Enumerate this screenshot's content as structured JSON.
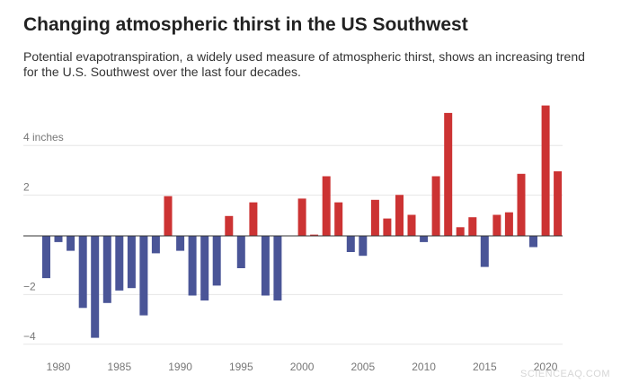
{
  "header": {
    "title": "Changing atmospheric thirst in the US Southwest",
    "subtitle": "Potential evapotranspiration, a widely used measure of atmospheric thirst, shows an increasing trend for the U.S. Southwest over the last four decades."
  },
  "watermark": "SCIENCEAQ.COM",
  "colors": {
    "positive": "#cc3333",
    "negative": "#4a5597",
    "grid": "#e6e6e6",
    "zero": "#333333"
  },
  "chart_data": {
    "type": "bar",
    "title": "Changing atmospheric thirst in the US Southwest",
    "xlabel": "",
    "ylabel": "",
    "ylim": [
      -4.2,
      5.4
    ],
    "grid": "horizontal",
    "legend": "none",
    "y_ticks": [
      {
        "value": 4,
        "label": "4 inches"
      },
      {
        "value": 2,
        "label": "2"
      },
      {
        "value": -2,
        "label": "−2"
      },
      {
        "value": -4,
        "label": "−4"
      }
    ],
    "x_ticks": [
      1980,
      1985,
      1990,
      1995,
      2000,
      2005,
      2010,
      2015,
      2020
    ],
    "x_tick_labels": [
      "1980",
      "1985",
      "1990",
      "1995",
      "2000",
      "2005",
      "2010",
      "2015",
      "2020"
    ],
    "categories": [
      1979,
      1980,
      1981,
      1982,
      1983,
      1984,
      1985,
      1986,
      1987,
      1988,
      1989,
      1990,
      1991,
      1992,
      1993,
      1994,
      1995,
      1996,
      1997,
      1998,
      1999,
      2000,
      2001,
      2002,
      2003,
      2004,
      2005,
      2006,
      2007,
      2008,
      2009,
      2010,
      2011,
      2012,
      2013,
      2014,
      2015,
      2016,
      2017,
      2018,
      2019,
      2020,
      2021
    ],
    "values": [
      -1.7,
      -0.25,
      -0.6,
      -2.9,
      -4.1,
      -2.7,
      -2.2,
      -2.1,
      -3.2,
      -0.7,
      1.6,
      -0.6,
      -2.4,
      -2.6,
      -2.0,
      0.8,
      -1.3,
      1.35,
      -2.4,
      -2.6,
      0.0,
      1.5,
      0.05,
      2.4,
      1.35,
      -0.65,
      -0.8,
      1.45,
      0.7,
      1.65,
      0.85,
      -0.25,
      2.4,
      4.95,
      0.35,
      0.75,
      -1.25,
      0.85,
      0.95,
      2.5,
      -0.45,
      5.25,
      2.6
    ]
  }
}
